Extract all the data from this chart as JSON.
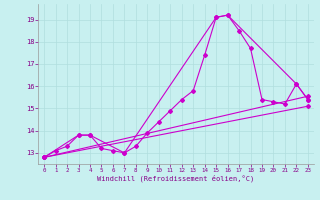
{
  "bg_color": "#c8f0f0",
  "line_color": "#cc00cc",
  "grid_color": "#b0dede",
  "xlim": [
    -0.5,
    23.5
  ],
  "ylim": [
    12.5,
    19.7
  ],
  "xticks": [
    0,
    1,
    2,
    3,
    4,
    5,
    6,
    7,
    8,
    9,
    10,
    11,
    12,
    13,
    14,
    15,
    16,
    17,
    18,
    19,
    20,
    21,
    22,
    23
  ],
  "yticks": [
    13,
    14,
    15,
    16,
    17,
    18,
    19
  ],
  "xlabel": "Windchill (Refroidissement éolien,°C)",
  "line1": {
    "x": [
      0,
      1,
      2,
      3,
      4,
      5,
      6,
      7,
      8,
      9,
      10,
      11,
      12,
      13,
      14,
      15,
      16,
      17,
      18,
      19,
      20,
      21,
      22,
      23
    ],
    "y": [
      12.8,
      13.1,
      13.3,
      13.8,
      13.8,
      13.2,
      13.1,
      13.0,
      13.3,
      13.9,
      14.4,
      14.9,
      15.4,
      15.8,
      17.4,
      19.1,
      19.2,
      18.5,
      17.7,
      15.4,
      15.3,
      15.2,
      16.1,
      15.4
    ]
  },
  "line2": {
    "x": [
      0,
      3,
      4,
      7,
      15,
      16,
      22,
      23
    ],
    "y": [
      12.8,
      13.8,
      13.8,
      13.0,
      19.1,
      19.2,
      16.1,
      15.4
    ]
  },
  "line3": {
    "x": [
      0,
      23
    ],
    "y": [
      12.8,
      15.55
    ]
  },
  "line4": {
    "x": [
      0,
      23
    ],
    "y": [
      12.8,
      15.1
    ]
  }
}
